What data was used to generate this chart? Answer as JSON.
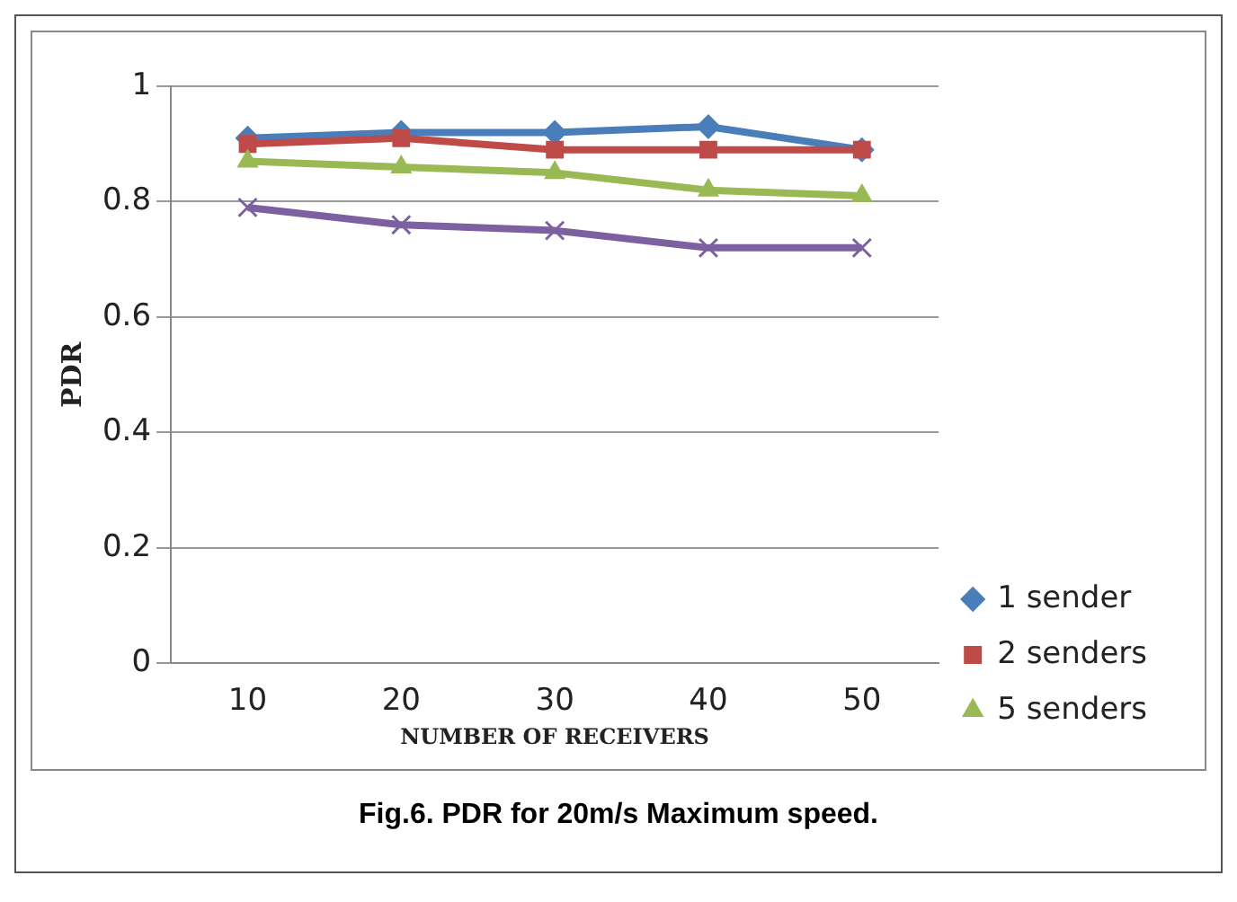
{
  "chart_data": {
    "type": "line",
    "xlabel": "NUMBER OF RECEIVERS",
    "ylabel": "PDR",
    "annotations": [
      "Fig.6. PDR for 20m/s Maximum speed."
    ],
    "categories": [
      "10",
      "20",
      "30",
      "40",
      "50"
    ],
    "series": [
      {
        "name": "1 sender",
        "color": "#4a7ebb",
        "marker": "diamond",
        "values": [
          0.91,
          0.92,
          0.92,
          0.93,
          0.89
        ]
      },
      {
        "name": "2 senders",
        "color": "#be4b48",
        "marker": "square",
        "values": [
          0.9,
          0.91,
          0.89,
          0.89,
          0.89
        ]
      },
      {
        "name": "5 senders",
        "color": "#98b954",
        "marker": "triangle",
        "values": [
          0.87,
          0.86,
          0.85,
          0.82,
          0.81
        ]
      },
      {
        "color": "#7d60a0",
        "marker": "cross",
        "values": [
          0.79,
          0.76,
          0.75,
          0.72,
          0.72
        ]
      }
    ],
    "ylim": [
      0,
      1
    ],
    "yticks": [
      0,
      0.2,
      0.4,
      0.6,
      0.8,
      1
    ],
    "grid": "y",
    "legend": "right"
  }
}
